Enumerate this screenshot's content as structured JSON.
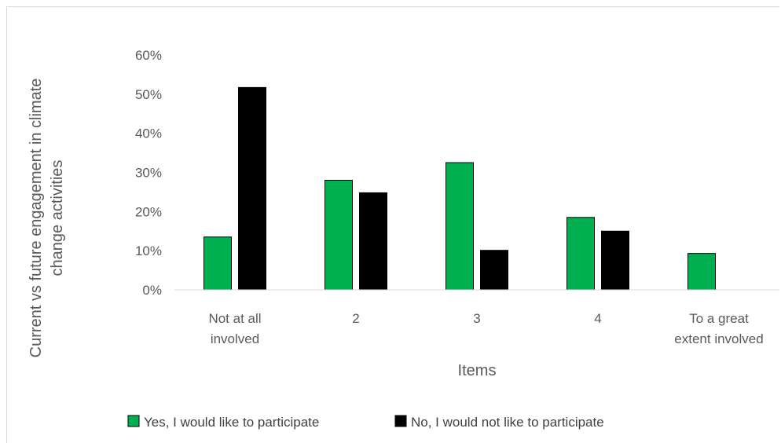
{
  "chart_data": {
    "type": "bar",
    "categories": [
      [
        "Not at all",
        "involved"
      ],
      [
        "2"
      ],
      [
        "3"
      ],
      [
        "4"
      ],
      [
        "To a great",
        "extent involved"
      ]
    ],
    "series": [
      {
        "name": "Yes, I would like to participate",
        "color": "#00b050",
        "values": [
          13.5,
          28,
          32.5,
          18.5,
          9.3
        ]
      },
      {
        "name": "No, I would not like to participate",
        "color": "#000000",
        "values": [
          51.7,
          24.8,
          10.1,
          15.0,
          null
        ]
      }
    ],
    "xlabel": "Items",
    "ylabel": [
      "Current vs future engagement in climate",
      "change activities"
    ],
    "ylim": [
      0,
      60
    ],
    "yticks": [
      0,
      10,
      20,
      30,
      40,
      50,
      60
    ],
    "ytick_format": "percent",
    "grid": false,
    "legend_position": "bottom"
  }
}
